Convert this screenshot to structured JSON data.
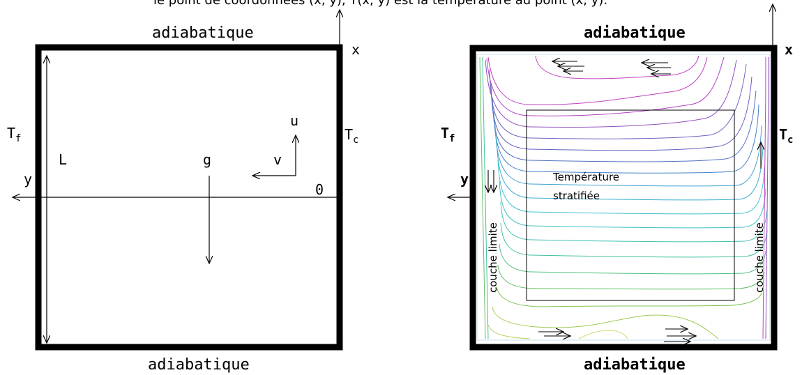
{
  "header_text": "le point de coordonnées (x, y), T(x, y) est la température au point (x, y).",
  "left_panel": {
    "top_label": "adiabatique",
    "bottom_label": "adiabatique",
    "x_label": "x",
    "y_label": "y",
    "origin_label": "0",
    "t_cold": "T",
    "t_cold_sub": "f",
    "t_hot": "T",
    "t_hot_sub": "c",
    "length_label": "L",
    "gravity_label": "g",
    "u_label": "u",
    "v_label": "v"
  },
  "right_panel": {
    "top_label": "adiabatique",
    "bottom_label": "adiabatique",
    "x_label": "x",
    "y_label": "y",
    "t_cold": "T",
    "t_cold_sub": "f",
    "t_hot": "T",
    "t_hot_sub": "c",
    "core_label_line1": "Température",
    "core_label_line2": "stratifiée",
    "left_boundary_label": "couche limite",
    "right_boundary_label": "couche limite"
  },
  "colors": {
    "wall": "#000000",
    "isotherm_hot": "#c040c0",
    "isotherm_mid_high": "#7060c0",
    "isotherm_mid": "#40b0d0",
    "isotherm_mid_low": "#40c0a0",
    "isotherm_cold": "#60c060",
    "isotherm_coldest": "#c0d060"
  }
}
